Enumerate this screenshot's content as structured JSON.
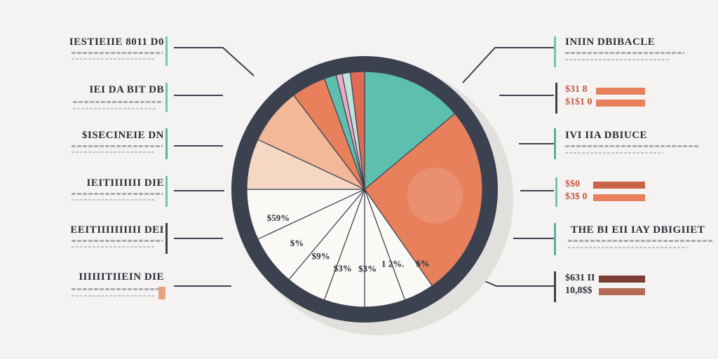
{
  "colors": {
    "ring": "#3c4150",
    "teal": "#5dbfae",
    "orange": "#e8805c",
    "peach": "#f2b898",
    "light_peach": "#f6d7c4",
    "pink": "#f2a7c3",
    "red": "#df6b52",
    "white_slice": "#fbf9f6",
    "accent_teal": "#4fb3a3",
    "accent_brown": "#c96448"
  },
  "chart_data": {
    "type": "pie",
    "slice_labels": [
      "$59%",
      "$%",
      "$9%",
      "$3%",
      "$3%",
      "1 2%.",
      "$%"
    ],
    "legend": {
      "left": [
        {
          "title": "IESTIEIIE 8011 D0"
        },
        {
          "title": "IEI DA BIT DB"
        },
        {
          "title": "$ISECINEIE DN"
        },
        {
          "title": "IEITIIIIIII DIE"
        },
        {
          "title": "EEITIIIIIIIIII DEI"
        },
        {
          "title": "IIIIIITIIEIN DIE"
        }
      ],
      "right": [
        {
          "title": "INIIN DBIBACLE",
          "values": []
        },
        {
          "title": "",
          "values": [
            "$31 8",
            "$1$1 0"
          ]
        },
        {
          "title": "IVI IIA DBIUCE",
          "values": []
        },
        {
          "title": "",
          "values": [
            "$$0",
            "$3$ 0"
          ]
        },
        {
          "title": "THE BI EII IAY DBIGIIET",
          "values": []
        },
        {
          "title": "",
          "values": [
            "$631 II",
            "10,8$$"
          ]
        }
      ]
    }
  }
}
